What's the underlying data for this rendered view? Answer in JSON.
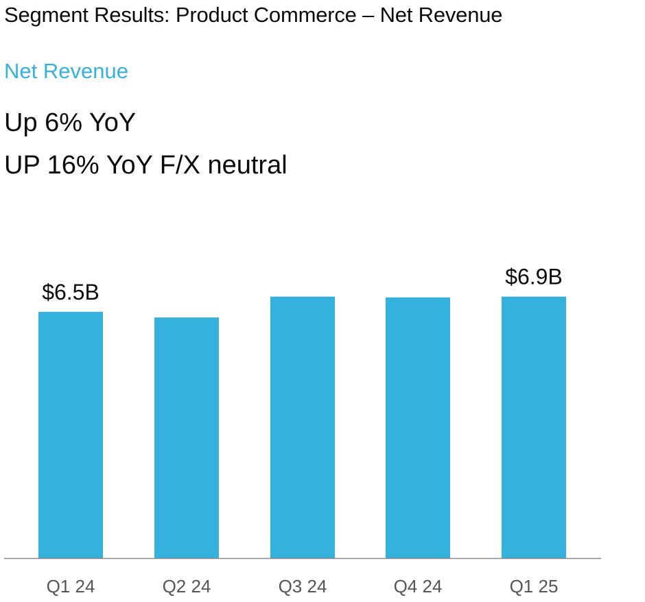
{
  "page": {
    "title": "Segment Results: Product Commerce – Net Revenue",
    "subtitle": "Net Revenue",
    "headline_lines": [
      "Up 6% YoY",
      "UP 16% YoY F/X neutral"
    ]
  },
  "colors": {
    "accent": "#35b1dd",
    "text": "#0b0b0b",
    "axis_label": "#555555",
    "baseline": "#888888"
  },
  "chart_data": {
    "type": "bar",
    "title": "",
    "xlabel": "",
    "ylabel": "",
    "categories": [
      "Q1 24",
      "Q2 24",
      "Q3 24",
      "Q4 24",
      "Q1 25"
    ],
    "values": [
      6.5,
      6.35,
      6.9,
      6.88,
      6.9
    ],
    "data_labels": [
      "$6.5B",
      null,
      null,
      null,
      "$6.9B"
    ],
    "ylim": [
      0,
      9.3
    ],
    "grid": false,
    "legend": "none"
  }
}
